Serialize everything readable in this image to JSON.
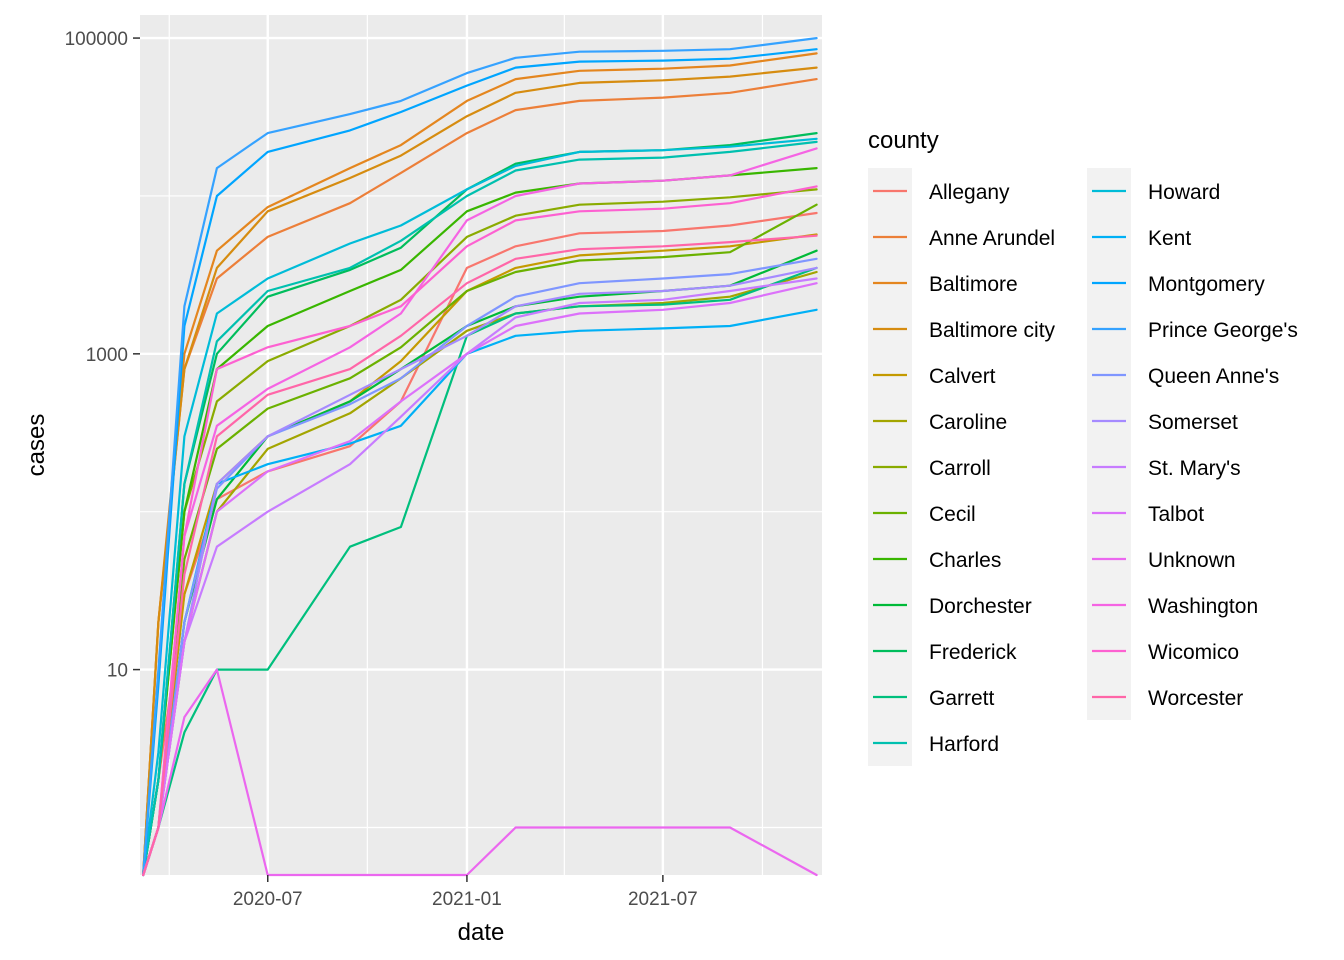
{
  "chart_data": {
    "type": "line",
    "xlabel": "date",
    "ylabel": "cases",
    "x_ticks": [
      "2020-07",
      "2021-01",
      "2021-07"
    ],
    "y_ticks": [
      "100000",
      "1000",
      "10"
    ],
    "y_scale": "log10",
    "ylim": [
      0.5,
      140000
    ],
    "xlim": [
      "2020-03-05",
      "2021-11-25"
    ],
    "grid": true,
    "legend_title": "county",
    "legend_position": "right",
    "dates": [
      "2020-03-08",
      "2020-03-22",
      "2020-04-15",
      "2020-05-15",
      "2020-07-01",
      "2020-09-15",
      "2020-11-01",
      "2021-01-01",
      "2021-02-15",
      "2021-04-15",
      "2021-07-01",
      "2021-09-01",
      "2021-11-20"
    ],
    "series": [
      {
        "name": "Allegany",
        "color": "#F8766D",
        "values": [
          0,
          2,
          30,
          120,
          180,
          260,
          500,
          3500,
          4800,
          5800,
          6000,
          6500,
          7800
        ]
      },
      {
        "name": "Anne Arundel",
        "color": "#EC7F39",
        "values": [
          0,
          20,
          800,
          3000,
          5500,
          9000,
          14000,
          25000,
          35000,
          40000,
          42000,
          45000,
          55000
        ]
      },
      {
        "name": "Baltimore",
        "color": "#E4861F",
        "values": [
          0,
          20,
          1000,
          4500,
          8500,
          15000,
          21000,
          40000,
          55000,
          62000,
          64000,
          67000,
          80000
        ]
      },
      {
        "name": "Baltimore city",
        "color": "#D68C10",
        "values": [
          0,
          20,
          800,
          3500,
          8000,
          13000,
          18000,
          32000,
          45000,
          52000,
          54000,
          57000,
          65000
        ]
      },
      {
        "name": "Calvert",
        "color": "#C49A00",
        "values": [
          0,
          1,
          30,
          150,
          300,
          500,
          900,
          2500,
          3500,
          4200,
          4500,
          4800,
          5700
        ]
      },
      {
        "name": "Caroline",
        "color": "#A3A500",
        "values": [
          0,
          1,
          15,
          100,
          250,
          420,
          700,
          1400,
          1800,
          2000,
          2100,
          2300,
          3300
        ]
      },
      {
        "name": "Carroll",
        "color": "#8AAB00",
        "values": [
          0,
          2,
          100,
          500,
          900,
          1500,
          2200,
          5500,
          7500,
          8800,
          9200,
          9800,
          11000
        ]
      },
      {
        "name": "Cecil",
        "color": "#6BB100",
        "values": [
          0,
          1,
          50,
          250,
          450,
          700,
          1100,
          2500,
          3300,
          3900,
          4100,
          4400,
          8800
        ]
      },
      {
        "name": "Charles",
        "color": "#39B600",
        "values": [
          0,
          2,
          100,
          800,
          1500,
          2500,
          3400,
          8000,
          10500,
          12000,
          12500,
          13500,
          15000
        ]
      },
      {
        "name": "Dorchester",
        "color": "#00BA38",
        "values": [
          0,
          1,
          20,
          120,
          300,
          500,
          800,
          1500,
          2000,
          2300,
          2500,
          2700,
          4500
        ]
      },
      {
        "name": "Frederick",
        "color": "#00BD5C",
        "values": [
          0,
          2,
          150,
          1000,
          2300,
          3400,
          4700,
          11000,
          16000,
          19000,
          19500,
          21000,
          25000
        ]
      },
      {
        "name": "Garrett",
        "color": "#00BF7D",
        "values": [
          0,
          1,
          4,
          10,
          10,
          60,
          80,
          1300,
          1800,
          2000,
          2050,
          2200,
          3500
        ]
      },
      {
        "name": "Harford",
        "color": "#00C0AF",
        "values": [
          0,
          2,
          150,
          1200,
          2500,
          3500,
          5200,
          10000,
          14500,
          17000,
          17500,
          19000,
          22000
        ]
      },
      {
        "name": "Howard",
        "color": "#00BCD8",
        "values": [
          0,
          3,
          300,
          1800,
          3000,
          5000,
          6500,
          11000,
          15500,
          19000,
          19500,
          20500,
          23000
        ]
      },
      {
        "name": "Kent",
        "color": "#00B0F6",
        "values": [
          0,
          1,
          20,
          150,
          200,
          270,
          350,
          1000,
          1300,
          1400,
          1450,
          1500,
          1900
        ]
      },
      {
        "name": "Montgomery",
        "color": "#00A5FF",
        "values": [
          0,
          8,
          1500,
          10000,
          19000,
          26000,
          34000,
          50000,
          65000,
          71000,
          72000,
          74000,
          85000
        ]
      },
      {
        "name": "Prince George's",
        "color": "#35A2FF",
        "values": [
          0,
          10,
          2000,
          15000,
          25000,
          33000,
          40000,
          60000,
          75000,
          82000,
          83000,
          85000,
          100000
        ]
      },
      {
        "name": "Queen Anne's",
        "color": "#7F96FF",
        "values": [
          0,
          1,
          20,
          140,
          300,
          480,
          700,
          1500,
          2300,
          2800,
          3000,
          3200,
          4000
        ]
      },
      {
        "name": "Somerset",
        "color": "#A58AFF",
        "values": [
          0,
          1,
          15,
          150,
          300,
          550,
          800,
          1300,
          2000,
          2400,
          2500,
          2700,
          3500
        ]
      },
      {
        "name": "St. Mary's",
        "color": "#C77CFF",
        "values": [
          0,
          1,
          15,
          60,
          100,
          200,
          400,
          1000,
          1700,
          2100,
          2200,
          2500,
          3000
        ]
      },
      {
        "name": "Talbot",
        "color": "#DC71FA",
        "values": [
          0,
          1,
          15,
          100,
          180,
          280,
          500,
          1000,
          1500,
          1800,
          1900,
          2100,
          2800
        ]
      },
      {
        "name": "Unknown",
        "color": "#EB67EF",
        "values": [
          0,
          1,
          5,
          10,
          0,
          0,
          0,
          0,
          1,
          1,
          1,
          1,
          0
        ]
      },
      {
        "name": "Washington",
        "color": "#F564E3",
        "values": [
          0,
          1,
          70,
          350,
          600,
          1100,
          1800,
          7000,
          10000,
          12000,
          12500,
          13500,
          20000
        ]
      },
      {
        "name": "Wicomico",
        "color": "#FD61D1",
        "values": [
          0,
          1,
          70,
          800,
          1100,
          1500,
          2000,
          4800,
          7000,
          8000,
          8300,
          9000,
          11500
        ]
      },
      {
        "name": "Worcester",
        "color": "#FF66A8",
        "values": [
          0,
          1,
          40,
          300,
          550,
          800,
          1300,
          2800,
          4000,
          4600,
          4800,
          5100,
          5600
        ]
      }
    ]
  }
}
